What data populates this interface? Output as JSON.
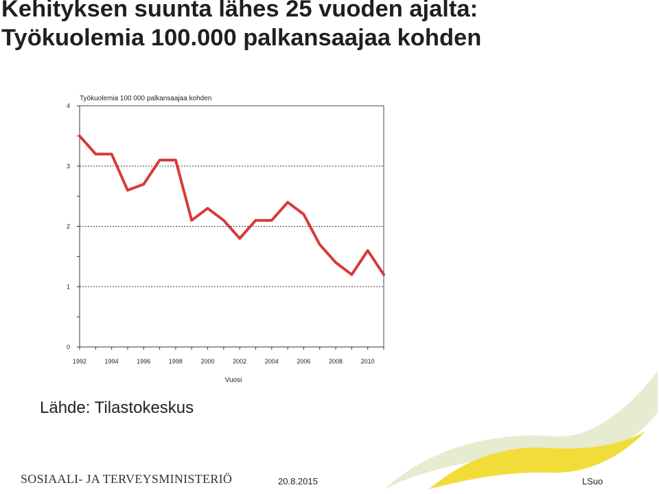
{
  "slide": {
    "title_line1": "Kehityksen suunta lähes 25 vuoden ajalta:",
    "title_line2": "Työkuolemia 100.000 palkansaajaa kohden",
    "source": "Lähde: Tilastokeskus"
  },
  "footer": {
    "organization": "SOSIAALI- JA TERVEYSMINISTERIÖ",
    "date": "20.8.2015",
    "author": "LSuo"
  },
  "colors": {
    "series": "#d9393b",
    "swoosh_outer": "#e6ecd0",
    "swoosh_inner": "#f2dc3a"
  },
  "chart_data": {
    "type": "line",
    "title": "Työkuolemia 100 000 palkansaajaa kohden",
    "xlabel": "Vuosi",
    "ylabel": "",
    "x": [
      1992,
      1993,
      1994,
      1995,
      1996,
      1997,
      1998,
      1999,
      2000,
      2001,
      2002,
      2003,
      2004,
      2005,
      2006,
      2007,
      2008,
      2009,
      2010,
      2011
    ],
    "series": [
      {
        "values": [
          3.5,
          3.2,
          3.2,
          2.6,
          2.7,
          3.1,
          3.1,
          2.1,
          2.3,
          2.1,
          1.8,
          2.1,
          2.1,
          2.4,
          2.2,
          1.7,
          1.4,
          1.2,
          1.6,
          1.2
        ]
      }
    ],
    "xlim": [
      1992,
      2011
    ],
    "ylim": [
      0,
      4
    ],
    "x_ticks": [
      "1992",
      "1994",
      "1996",
      "1998",
      "2000",
      "2002",
      "2004",
      "2006",
      "2008",
      "2010"
    ],
    "y_ticks": [
      "0",
      "1",
      "2",
      "3",
      "4"
    ],
    "grid": "horizontal dotted",
    "legend": "none"
  }
}
